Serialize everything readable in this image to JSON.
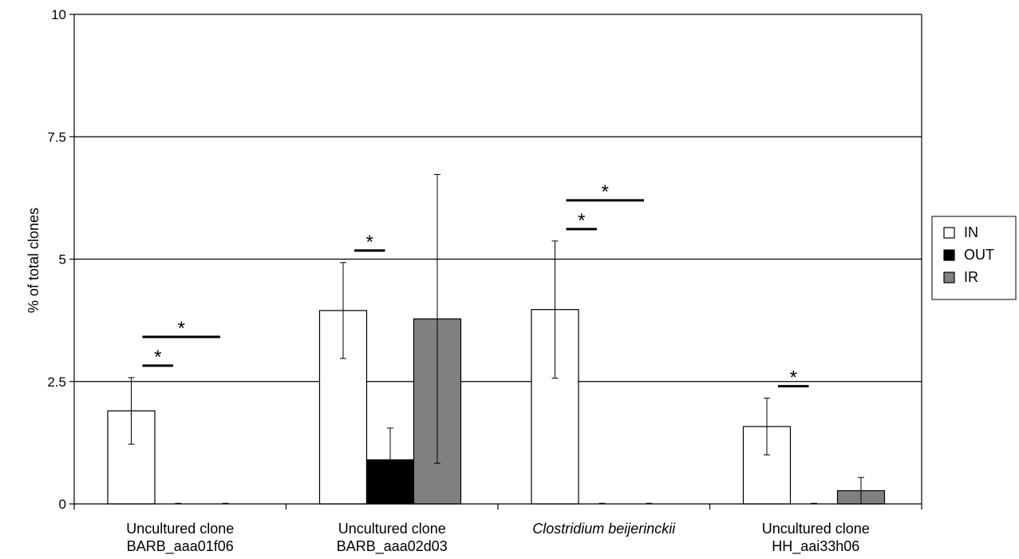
{
  "chart_data": {
    "type": "bar",
    "ylabel": "% of total clones",
    "ylim": [
      0,
      10
    ],
    "yticks": [
      "0",
      "2.5",
      "5",
      "7.5",
      "10"
    ],
    "ytick_values": [
      0,
      2.5,
      5,
      7.5,
      10
    ],
    "grid": true,
    "legend_position": "right",
    "categories": [
      {
        "line1": "Uncultured clone",
        "line2": "BARB_aaa01f06",
        "italic": false
      },
      {
        "line1": "Uncultured clone",
        "line2": "BARB_aaa02d03",
        "italic": false
      },
      {
        "line1": "Clostridium beijerinckii",
        "line2": "",
        "italic": true
      },
      {
        "line1": "Uncultured clone",
        "line2": "HH_aai33h06",
        "italic": false
      }
    ],
    "series": [
      {
        "name": "IN",
        "color": "#ffffff",
        "values": [
          1.9,
          3.95,
          3.97,
          1.58
        ],
        "err": [
          0.68,
          0.98,
          1.4,
          0.58
        ]
      },
      {
        "name": "OUT",
        "color": "#000000",
        "values": [
          0,
          0.9,
          0,
          0
        ],
        "err": [
          0,
          0.65,
          0,
          0
        ]
      },
      {
        "name": "IR",
        "color": "#808080",
        "values": [
          0,
          3.78,
          0,
          0.27
        ],
        "err": [
          0,
          2.95,
          0,
          0.27
        ]
      }
    ],
    "significance": [
      {
        "category": 0,
        "from": 0,
        "to": 1,
        "level": 0,
        "symbol": "*"
      },
      {
        "category": 0,
        "from": 0,
        "to": 2,
        "level": 1,
        "symbol": "*"
      },
      {
        "category": 1,
        "from": 0,
        "to": 1,
        "level": 0,
        "symbol": "*"
      },
      {
        "category": 2,
        "from": 0,
        "to": 1,
        "level": 0,
        "symbol": "*"
      },
      {
        "category": 2,
        "from": 0,
        "to": 2,
        "level": 1,
        "symbol": "*"
      },
      {
        "category": 3,
        "from": 0,
        "to": 1,
        "level": 0,
        "symbol": "*"
      }
    ]
  }
}
